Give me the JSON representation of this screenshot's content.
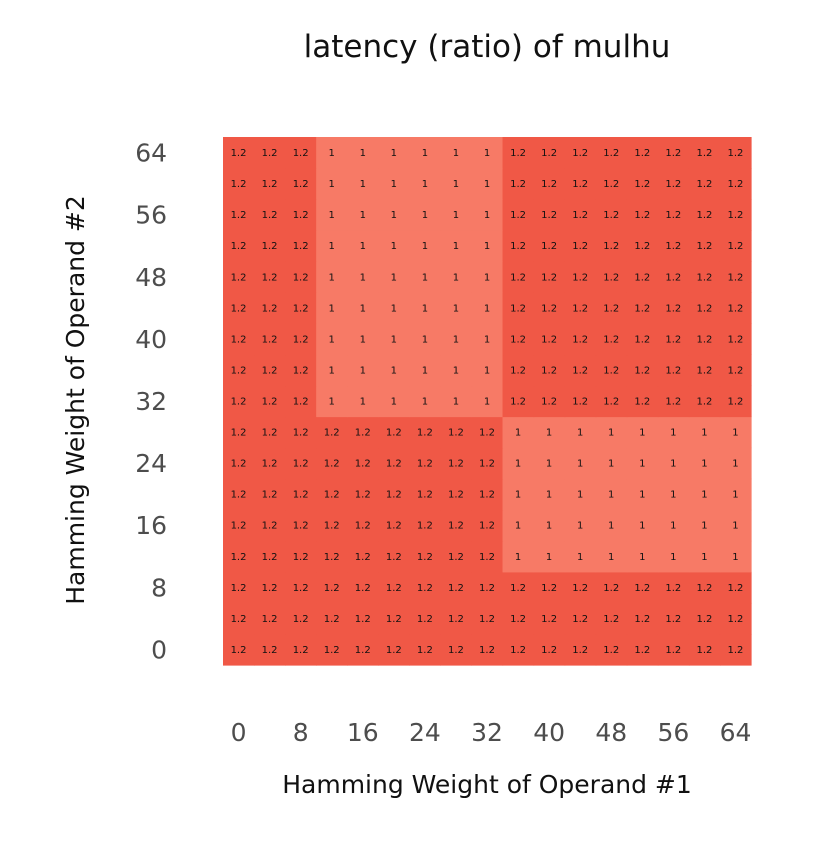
{
  "chart_data": {
    "type": "heatmap",
    "title": "latency (ratio) of mulhu",
    "xlabel": "Hamming Weight of Operand #1",
    "ylabel": "Hamming Weight of Operand #2",
    "x_ticks": [
      "0",
      "8",
      "16",
      "24",
      "32",
      "40",
      "48",
      "56",
      "64"
    ],
    "y_ticks": [
      "0",
      "8",
      "16",
      "24",
      "32",
      "40",
      "48",
      "56",
      "64"
    ],
    "x_range": [
      -2,
      66
    ],
    "y_range": [
      -2,
      66
    ],
    "x": [
      0,
      4,
      8,
      12,
      16,
      20,
      24,
      28,
      32,
      36,
      40,
      44,
      48,
      52,
      56,
      60,
      64
    ],
    "y": [
      0,
      4,
      8,
      12,
      16,
      20,
      24,
      28,
      32,
      36,
      40,
      44,
      48,
      52,
      56,
      60,
      64
    ],
    "cell_labels": [
      [
        "1.2",
        "1.2",
        "1.2",
        "1.2",
        "1.2",
        "1.2",
        "1.2",
        "1.2",
        "1.2",
        "1.2",
        "1.2",
        "1.2",
        "1.2",
        "1.2",
        "1.2",
        "1.2",
        "1.2"
      ],
      [
        "1.2",
        "1.2",
        "1.2",
        "1.2",
        "1.2",
        "1.2",
        "1.2",
        "1.2",
        "1.2",
        "1.2",
        "1.2",
        "1.2",
        "1.2",
        "1.2",
        "1.2",
        "1.2",
        "1.2"
      ],
      [
        "1.2",
        "1.2",
        "1.2",
        "1.2",
        "1.2",
        "1.2",
        "1.2",
        "1.2",
        "1.2",
        "1.2",
        "1.2",
        "1.2",
        "1.2",
        "1.2",
        "1.2",
        "1.2",
        "1.2"
      ],
      [
        "1.2",
        "1.2",
        "1.2",
        "1.2",
        "1.2",
        "1.2",
        "1.2",
        "1.2",
        "1.2",
        "1",
        "1",
        "1",
        "1",
        "1",
        "1",
        "1",
        "1"
      ],
      [
        "1.2",
        "1.2",
        "1.2",
        "1.2",
        "1.2",
        "1.2",
        "1.2",
        "1.2",
        "1.2",
        "1",
        "1",
        "1",
        "1",
        "1",
        "1",
        "1",
        "1"
      ],
      [
        "1.2",
        "1.2",
        "1.2",
        "1.2",
        "1.2",
        "1.2",
        "1.2",
        "1.2",
        "1.2",
        "1",
        "1",
        "1",
        "1",
        "1",
        "1",
        "1",
        "1"
      ],
      [
        "1.2",
        "1.2",
        "1.2",
        "1.2",
        "1.2",
        "1.2",
        "1.2",
        "1.2",
        "1.2",
        "1",
        "1",
        "1",
        "1",
        "1",
        "1",
        "1",
        "1"
      ],
      [
        "1.2",
        "1.2",
        "1.2",
        "1.2",
        "1.2",
        "1.2",
        "1.2",
        "1.2",
        "1.2",
        "1",
        "1",
        "1",
        "1",
        "1",
        "1",
        "1",
        "1"
      ],
      [
        "1.2",
        "1.2",
        "1.2",
        "1",
        "1",
        "1",
        "1",
        "1",
        "1",
        "1.2",
        "1.2",
        "1.2",
        "1.2",
        "1.2",
        "1.2",
        "1.2",
        "1.2"
      ],
      [
        "1.2",
        "1.2",
        "1.2",
        "1",
        "1",
        "1",
        "1",
        "1",
        "1",
        "1.2",
        "1.2",
        "1.2",
        "1.2",
        "1.2",
        "1.2",
        "1.2",
        "1.2"
      ],
      [
        "1.2",
        "1.2",
        "1.2",
        "1",
        "1",
        "1",
        "1",
        "1",
        "1",
        "1.2",
        "1.2",
        "1.2",
        "1.2",
        "1.2",
        "1.2",
        "1.2",
        "1.2"
      ],
      [
        "1.2",
        "1.2",
        "1.2",
        "1",
        "1",
        "1",
        "1",
        "1",
        "1",
        "1.2",
        "1.2",
        "1.2",
        "1.2",
        "1.2",
        "1.2",
        "1.2",
        "1.2"
      ],
      [
        "1.2",
        "1.2",
        "1.2",
        "1",
        "1",
        "1",
        "1",
        "1",
        "1",
        "1.2",
        "1.2",
        "1.2",
        "1.2",
        "1.2",
        "1.2",
        "1.2",
        "1.2"
      ],
      [
        "1.2",
        "1.2",
        "1.2",
        "1",
        "1",
        "1",
        "1",
        "1",
        "1",
        "1.2",
        "1.2",
        "1.2",
        "1.2",
        "1.2",
        "1.2",
        "1.2",
        "1.2"
      ],
      [
        "1.2",
        "1.2",
        "1.2",
        "1",
        "1",
        "1",
        "1",
        "1",
        "1",
        "1.2",
        "1.2",
        "1.2",
        "1.2",
        "1.2",
        "1.2",
        "1.2",
        "1.2"
      ],
      [
        "1.2",
        "1.2",
        "1.2",
        "1",
        "1",
        "1",
        "1",
        "1",
        "1",
        "1.2",
        "1.2",
        "1.2",
        "1.2",
        "1.2",
        "1.2",
        "1.2",
        "1.2"
      ],
      [
        "1.2",
        "1.2",
        "1.2",
        "1",
        "1",
        "1",
        "1",
        "1",
        "1",
        "1.2",
        "1.2",
        "1.2",
        "1.2",
        "1.2",
        "1.2",
        "1.2",
        "1.2"
      ]
    ],
    "color_low": "#f77a66",
    "color_high": "#f05846",
    "grid": false,
    "legend": "none"
  }
}
